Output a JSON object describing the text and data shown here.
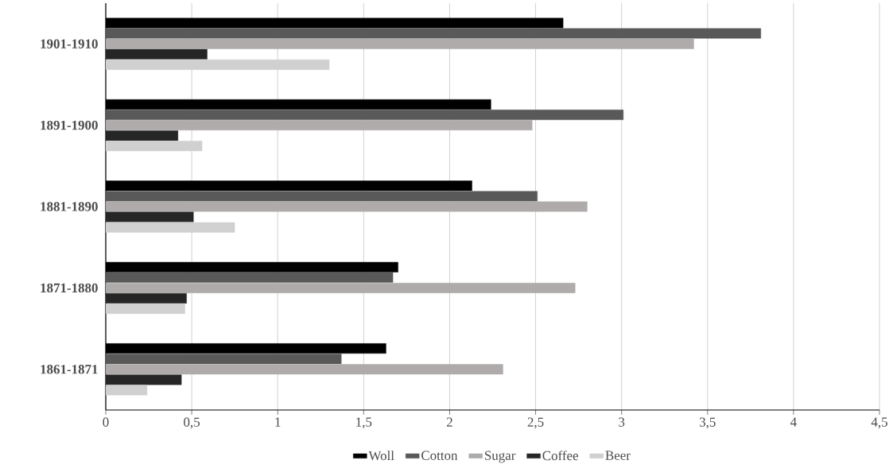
{
  "chart_data": {
    "type": "bar",
    "orientation": "horizontal",
    "categories": [
      "1901-1910",
      "1891-1900",
      "1881-1890",
      "1871-1880",
      "1861-1871"
    ],
    "series": [
      {
        "name": "Woll",
        "color": "#000000",
        "values": [
          2.66,
          2.24,
          2.13,
          1.7,
          1.63
        ]
      },
      {
        "name": "Cotton",
        "color": "#595959",
        "values": [
          3.81,
          3.01,
          2.51,
          1.67,
          1.37
        ]
      },
      {
        "name": "Sugar",
        "color": "#afabab",
        "values": [
          3.42,
          2.48,
          2.8,
          2.73,
          2.31
        ]
      },
      {
        "name": "Coffee",
        "color": "#262626",
        "values": [
          0.59,
          0.42,
          0.51,
          0.47,
          0.44
        ]
      },
      {
        "name": "Beer",
        "color": "#d0d0d0",
        "values": [
          1.3,
          0.56,
          0.75,
          0.46,
          0.24
        ]
      }
    ],
    "xlim": [
      0,
      4.5
    ],
    "xticks": [
      {
        "value": 0,
        "label": "0"
      },
      {
        "value": 0.5,
        "label": "0,5"
      },
      {
        "value": 1,
        "label": "1"
      },
      {
        "value": 1.5,
        "label": "1,5"
      },
      {
        "value": 2,
        "label": "2"
      },
      {
        "value": 2.5,
        "label": "2,5"
      },
      {
        "value": 3,
        "label": "3"
      },
      {
        "value": 3.5,
        "label": "3,5"
      },
      {
        "value": 4,
        "label": "4"
      },
      {
        "value": 4.5,
        "label": "4,5"
      }
    ],
    "grid": "x",
    "legend": "bottom"
  }
}
